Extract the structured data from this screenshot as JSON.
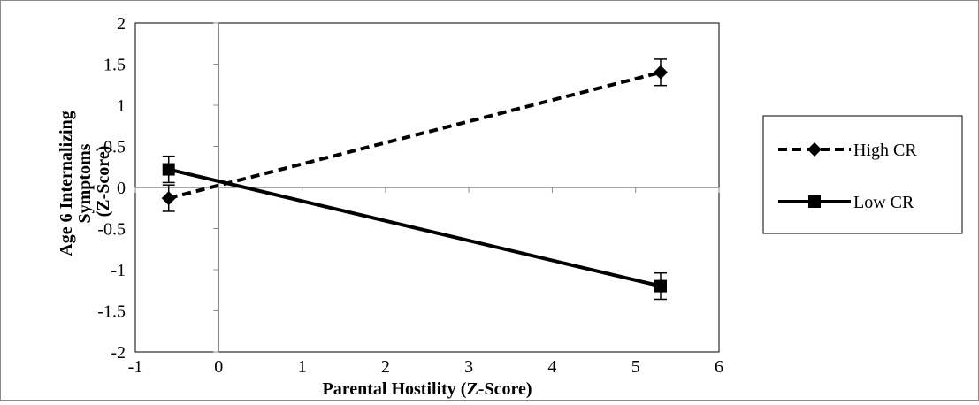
{
  "chart_data": {
    "type": "line",
    "title": "",
    "xlabel": "Parental Hostility (Z-Score)",
    "ylabel_lines": [
      "Age 6 Internalizing",
      "Symptoms",
      "(Z-Score)"
    ],
    "xlim": [
      -1,
      6
    ],
    "ylim": [
      -2,
      2
    ],
    "x_ticks": [
      -1,
      0,
      1,
      2,
      3,
      4,
      5,
      6
    ],
    "y_ticks": [
      2,
      1.5,
      1,
      0.5,
      0,
      -0.5,
      -1,
      -1.5,
      -2
    ],
    "x_tick_labels": [
      "-1",
      "0",
      "1",
      "2",
      "3",
      "4",
      "5",
      "6"
    ],
    "y_tick_labels": [
      "2",
      "1.5",
      "1",
      "0.5",
      "0",
      "-0.5",
      "-1",
      "-1.5",
      "-2"
    ],
    "grid": false,
    "legend_position": "right",
    "series": [
      {
        "name": "High CR",
        "marker": "diamond",
        "line_style": "dashed",
        "color": "#000000",
        "x": [
          -0.6,
          5.3
        ],
        "y": [
          -0.13,
          1.4
        ],
        "error": [
          0.16,
          0.16
        ]
      },
      {
        "name": "Low CR",
        "marker": "square",
        "line_style": "solid",
        "color": "#000000",
        "x": [
          -0.6,
          5.3
        ],
        "y": [
          0.22,
          -1.2
        ],
        "error": [
          0.16,
          0.16
        ]
      }
    ]
  }
}
